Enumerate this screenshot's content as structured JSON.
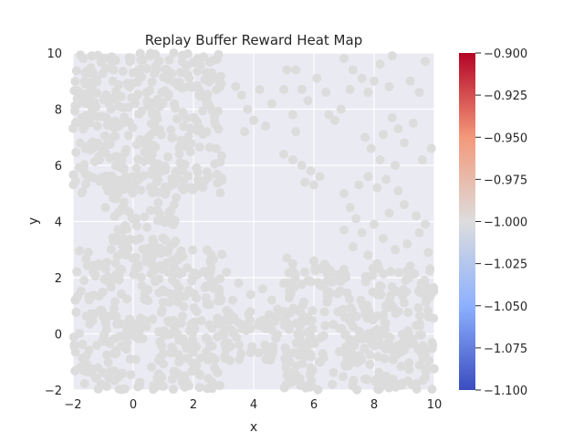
{
  "chart_data": {
    "type": "scatter",
    "title": "Replay Buffer Reward Heat Map",
    "xlabel": "x",
    "ylabel": "y",
    "xlim": [
      -2,
      10
    ],
    "ylim": [
      -2,
      10
    ],
    "xticks": [
      -2,
      0,
      2,
      4,
      6,
      8,
      10
    ],
    "yticks": [
      -2,
      0,
      2,
      4,
      6,
      8,
      10
    ],
    "grid": true,
    "colormap": "coolwarm",
    "point_color": "#dcdcdc",
    "axes_background": "#eaeaf2",
    "colorbar": {
      "range": [
        -1.1,
        -0.9
      ],
      "ticks": [
        -1.1,
        -1.075,
        -1.05,
        -1.025,
        -1.0,
        -0.975,
        -0.95,
        -0.925,
        -0.9
      ],
      "tick_labels": [
        "−1.100",
        "−1.075",
        "−1.050",
        "−1.025",
        "−1.000",
        "−0.975",
        "−0.950",
        "−0.925",
        "−0.900"
      ]
    },
    "reward_value": -1.0,
    "regions": [
      {
        "x": [
          -2,
          3
        ],
        "y": [
          -2,
          3
        ]
      },
      {
        "x": [
          3,
          6
        ],
        "y": [
          -1,
          1
        ]
      },
      {
        "x": [
          5,
          10
        ],
        "y": [
          -2,
          2.5
        ]
      },
      {
        "x": [
          -1,
          1.5
        ],
        "y": [
          3,
          6
        ]
      },
      {
        "x": [
          -2,
          3
        ],
        "y": [
          5,
          10
        ]
      }
    ],
    "points": [
      [
        3.4,
        8.8
      ],
      [
        3.6,
        8.5
      ],
      [
        4.2,
        8.7
      ],
      [
        4.6,
        8.2
      ],
      [
        3.8,
        8.0
      ],
      [
        4.0,
        7.6
      ],
      [
        3.7,
        7.2
      ],
      [
        4.4,
        7.4
      ],
      [
        5.1,
        9.4
      ],
      [
        5.4,
        9.4
      ],
      [
        5.0,
        8.7
      ],
      [
        5.6,
        8.7
      ],
      [
        5.8,
        8.3
      ],
      [
        5.3,
        7.8
      ],
      [
        6.1,
        9.1
      ],
      [
        6.4,
        8.6
      ],
      [
        7.0,
        9.8
      ],
      [
        7.3,
        9.4
      ],
      [
        7.6,
        9.1
      ],
      [
        7.2,
        8.7
      ],
      [
        7.8,
        8.6
      ],
      [
        8.2,
        9.6
      ],
      [
        8.6,
        9.9
      ],
      [
        8.0,
        9.0
      ],
      [
        8.5,
        8.8
      ],
      [
        9.2,
        9.0
      ],
      [
        9.5,
        8.6
      ],
      [
        9.7,
        9.7
      ],
      [
        6.5,
        7.8
      ],
      [
        6.9,
        8.0
      ],
      [
        6.7,
        7.6
      ],
      [
        7.7,
        7.0
      ],
      [
        7.9,
        6.6
      ],
      [
        8.3,
        7.1
      ],
      [
        8.6,
        7.7
      ],
      [
        8.8,
        7.3
      ],
      [
        9.0,
        6.8
      ],
      [
        9.3,
        7.5
      ],
      [
        9.6,
        6.2
      ],
      [
        9.9,
        6.6
      ],
      [
        8.2,
        6.2
      ],
      [
        8.7,
        6.0
      ],
      [
        5.4,
        7.2
      ],
      [
        5.0,
        6.4
      ],
      [
        5.3,
        6.2
      ],
      [
        5.6,
        6.0
      ],
      [
        5.9,
        5.8
      ],
      [
        6.2,
        5.6
      ],
      [
        5.7,
        5.4
      ],
      [
        6.0,
        5.3
      ],
      [
        7.0,
        5.0
      ],
      [
        7.5,
        5.3
      ],
      [
        7.8,
        5.6
      ],
      [
        8.1,
        5.2
      ],
      [
        8.4,
        5.5
      ],
      [
        8.8,
        5.1
      ],
      [
        9.0,
        4.6
      ],
      [
        7.2,
        4.5
      ],
      [
        7.4,
        4.1
      ],
      [
        7.0,
        3.7
      ],
      [
        7.6,
        3.6
      ],
      [
        8.0,
        3.9
      ],
      [
        8.3,
        3.4
      ],
      [
        8.7,
        3.0
      ],
      [
        9.1,
        3.2
      ],
      [
        9.5,
        3.6
      ],
      [
        9.8,
        2.9
      ],
      [
        8.5,
        4.3
      ],
      [
        7.3,
        3.1
      ],
      [
        7.8,
        2.8
      ],
      [
        8.1,
        2.5
      ],
      [
        6.4,
        2.4
      ],
      [
        6.0,
        2.6
      ],
      [
        5.7,
        2.2
      ],
      [
        5.3,
        2.5
      ],
      [
        5.1,
        2.7
      ],
      [
        6.7,
        2.1
      ],
      [
        7.0,
        2.3
      ],
      [
        9.4,
        4.2
      ],
      [
        9.7,
        3.9
      ],
      [
        3.1,
        2.2
      ],
      [
        3.5,
        1.8
      ],
      [
        3.9,
        1.4
      ],
      [
        4.3,
        1.6
      ],
      [
        3.3,
        1.2
      ],
      [
        4.6,
        1.2
      ],
      [
        5.0,
        1.8
      ]
    ]
  }
}
